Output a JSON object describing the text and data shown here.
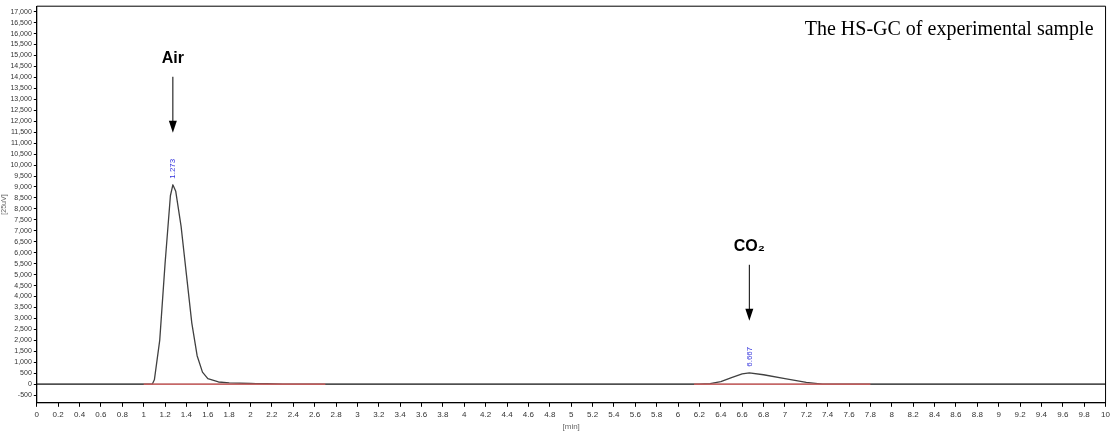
{
  "chart_data": {
    "type": "line",
    "title": "The HS-GC of experimental sample",
    "xlabel": "[min]",
    "ylabel": "[25uV]",
    "series": [
      {
        "color": "#404040",
        "x": [
          0,
          1.0,
          1.08,
          1.1,
          1.15,
          1.2,
          1.25,
          1.273,
          1.3,
          1.35,
          1.4,
          1.45,
          1.5,
          1.55,
          1.6,
          1.7,
          1.8,
          2.0,
          2.15,
          2.3,
          6.2,
          6.3,
          6.4,
          6.5,
          6.6,
          6.667,
          6.8,
          7.0,
          7.2,
          7.35,
          10
        ],
        "values": [
          0,
          0,
          0,
          200,
          2000,
          5500,
          8600,
          9100,
          8800,
          7200,
          5000,
          2800,
          1300,
          550,
          250,
          100,
          60,
          30,
          20,
          0,
          0,
          20,
          120,
          300,
          470,
          520,
          430,
          250,
          80,
          0,
          0
        ]
      },
      {
        "color": "#e06060",
        "x": [
          1.0,
          2.7
        ],
        "values": [
          0,
          0
        ]
      },
      {
        "color": "#e06060",
        "x": [
          6.15,
          7.8
        ],
        "values": [
          0,
          0
        ]
      }
    ],
    "annotations": [
      "Air",
      "CO₂",
      {
        "text": "1.273",
        "x": 1.273,
        "y": 9100
      },
      {
        "text": "6.667",
        "x": 6.667,
        "y": 520
      }
    ],
    "xlim": [
      0,
      10
    ],
    "xticks": [
      0,
      0.2,
      0.4,
      0.6,
      0.8,
      1,
      1.2,
      1.4,
      1.6,
      1.8,
      2,
      2.2,
      2.4,
      2.6,
      2.8,
      3,
      3.2,
      3.4,
      3.6,
      3.8,
      4,
      4.2,
      4.4,
      4.6,
      4.8,
      5,
      5.2,
      5.4,
      5.6,
      5.8,
      6,
      6.2,
      6.4,
      6.6,
      6.8,
      7,
      7.2,
      7.4,
      7.6,
      7.8,
      8,
      8.2,
      8.4,
      8.6,
      8.8,
      9,
      9.2,
      9.4,
      9.6,
      9.8,
      10
    ],
    "ylim": [
      -850,
      17250
    ],
    "yticks": [
      -500,
      0,
      500,
      {
        "value": 1000,
        "label": "1,000"
      },
      {
        "value": 1500,
        "label": "1,500"
      },
      {
        "value": 2000,
        "label": "2,000"
      },
      {
        "value": 2500,
        "label": "2,500"
      },
      {
        "value": 3000,
        "label": "3,000"
      },
      {
        "value": 3500,
        "label": "3,500"
      },
      {
        "value": 4000,
        "label": "4,000"
      },
      {
        "value": 4500,
        "label": "4,500"
      },
      {
        "value": 5000,
        "label": "5,000"
      },
      {
        "value": 5500,
        "label": "5,500"
      },
      {
        "value": 6000,
        "label": "6,000"
      },
      {
        "value": 6500,
        "label": "6,500"
      },
      {
        "value": 7000,
        "label": "7,000"
      },
      {
        "value": 7500,
        "label": "7,500"
      },
      {
        "value": 8000,
        "label": "8,000"
      },
      {
        "value": 8500,
        "label": "8,500"
      },
      {
        "value": 9000,
        "label": "9,000"
      },
      {
        "value": 9500,
        "label": "9,500"
      },
      {
        "value": 10000,
        "label": "10,000"
      },
      {
        "value": 10500,
        "label": "10,500"
      },
      {
        "value": 11000,
        "label": "11,000"
      },
      {
        "value": 11500,
        "label": "11,500"
      },
      {
        "value": 12000,
        "label": "12,000"
      },
      {
        "value": 12500,
        "label": "12,500"
      },
      {
        "value": 13000,
        "label": "13,000"
      },
      {
        "value": 13500,
        "label": "13,500"
      },
      {
        "value": 14000,
        "label": "14,000"
      },
      {
        "value": 14500,
        "label": "14,500"
      },
      {
        "value": 15000,
        "label": "15,000"
      },
      {
        "value": 15500,
        "label": "15,500"
      },
      {
        "value": 16000,
        "label": "16,000"
      },
      {
        "value": 16500,
        "label": "16,500"
      },
      {
        "value": 17000,
        "label": "17,000"
      }
    ],
    "ref_lines": [
      {
        "axis": "y",
        "value": 0,
        "color": "#404040"
      }
    ],
    "grid": false,
    "legend": false,
    "marker": "none",
    "line_style": "solid"
  }
}
